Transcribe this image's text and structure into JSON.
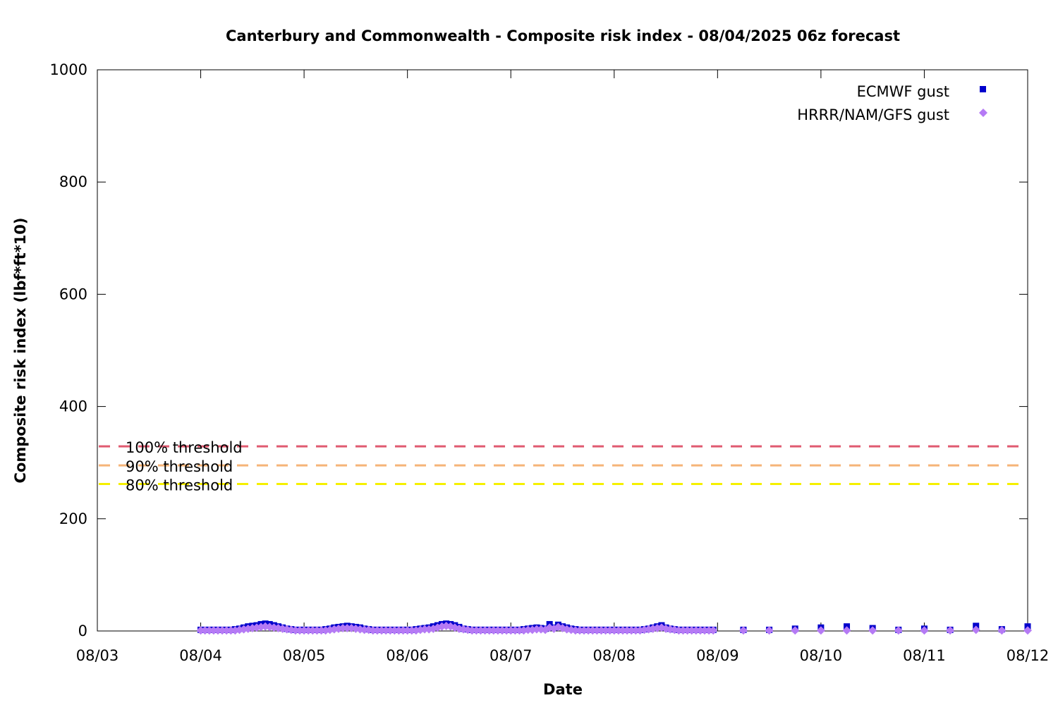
{
  "chart_data": {
    "type": "scatter",
    "title": "Canterbury and Commonwealth - Composite risk index - 08/04/2025 06z forecast",
    "xlabel": "Date",
    "ylabel": "Composite risk index (lbf*ft*10)",
    "ylim": [
      0,
      1000
    ],
    "xlim": [
      "08/03",
      "08/12"
    ],
    "x_ticks": [
      "08/03",
      "08/04",
      "08/05",
      "08/06",
      "08/07",
      "08/08",
      "08/09",
      "08/10",
      "08/11",
      "08/12"
    ],
    "y_ticks": [
      0,
      200,
      400,
      600,
      800,
      1000
    ],
    "grid": false,
    "legend_position": "top-right",
    "thresholds": [
      {
        "label": "100% threshold",
        "value": 329,
        "color": "#e05a70"
      },
      {
        "label": "90% threshold",
        "value": 295,
        "color": "#f5b478"
      },
      {
        "label": "80% threshold",
        "value": 262,
        "color": "#f5f000"
      }
    ],
    "series": [
      {
        "name": "ECMWF gust",
        "color": "#0000cc",
        "marker": "square",
        "x": [
          "08/04 00z",
          "08/04 01z",
          "08/04 02z",
          "08/04 03z",
          "08/04 04z",
          "08/04 05z",
          "08/04 06z",
          "08/04 07z",
          "08/04 08z",
          "08/04 09z",
          "08/04 10z",
          "08/04 11z",
          "08/04 12z",
          "08/04 13z",
          "08/04 14z",
          "08/04 15z",
          "08/04 16z",
          "08/04 17z",
          "08/04 18z",
          "08/04 19z",
          "08/04 20z",
          "08/04 21z",
          "08/04 22z",
          "08/04 23z",
          "08/05 00z",
          "08/05 01z",
          "08/05 02z",
          "08/05 03z",
          "08/05 04z",
          "08/05 05z",
          "08/05 06z",
          "08/05 07z",
          "08/05 08z",
          "08/05 09z",
          "08/05 10z",
          "08/05 11z",
          "08/05 12z",
          "08/05 13z",
          "08/05 14z",
          "08/05 15z",
          "08/05 16z",
          "08/05 17z",
          "08/05 18z",
          "08/05 19z",
          "08/05 20z",
          "08/05 21z",
          "08/05 22z",
          "08/05 23z",
          "08/06 00z",
          "08/06 01z",
          "08/06 02z",
          "08/06 03z",
          "08/06 04z",
          "08/06 05z",
          "08/06 06z",
          "08/06 07z",
          "08/06 08z",
          "08/06 09z",
          "08/06 10z",
          "08/06 11z",
          "08/06 12z",
          "08/06 13z",
          "08/06 14z",
          "08/06 15z",
          "08/06 16z",
          "08/06 17z",
          "08/06 18z",
          "08/06 19z",
          "08/06 20z",
          "08/06 21z",
          "08/06 22z",
          "08/06 23z",
          "08/07 00z",
          "08/07 01z",
          "08/07 02z",
          "08/07 03z",
          "08/07 04z",
          "08/07 05z",
          "08/07 06z",
          "08/07 07z",
          "08/07 08z",
          "08/07 09z",
          "08/07 10z",
          "08/07 11z",
          "08/07 12z",
          "08/07 13z",
          "08/07 14z",
          "08/07 15z",
          "08/07 16z",
          "08/07 17z",
          "08/07 18z",
          "08/07 19z",
          "08/07 20z",
          "08/07 21z",
          "08/07 22z",
          "08/07 23z",
          "08/08 00z",
          "08/08 01z",
          "08/08 02z",
          "08/08 03z",
          "08/08 04z",
          "08/08 05z",
          "08/08 06z",
          "08/08 07z",
          "08/08 08z",
          "08/08 09z",
          "08/08 10z",
          "08/08 11z",
          "08/08 12z",
          "08/08 13z",
          "08/08 14z",
          "08/08 15z",
          "08/08 16z",
          "08/08 17z",
          "08/08 18z",
          "08/08 19z",
          "08/08 20z",
          "08/08 21z",
          "08/08 22z",
          "08/08 23z",
          "08/09 06z",
          "08/09 12z",
          "08/09 18z",
          "08/10 00z",
          "08/10 06z",
          "08/10 12z",
          "08/10 18z",
          "08/11 00z",
          "08/11 06z",
          "08/11 12z",
          "08/11 18z",
          "08/12 00z"
        ],
        "values": [
          2,
          2,
          2,
          2,
          2,
          2,
          2,
          2,
          3,
          4,
          6,
          8,
          9,
          10,
          12,
          13,
          12,
          10,
          8,
          6,
          4,
          3,
          2,
          2,
          2,
          2,
          2,
          2,
          2,
          3,
          4,
          6,
          7,
          8,
          9,
          8,
          7,
          6,
          4,
          3,
          2,
          2,
          2,
          2,
          2,
          2,
          2,
          2,
          2,
          2,
          3,
          4,
          5,
          6,
          8,
          10,
          12,
          13,
          12,
          10,
          7,
          4,
          3,
          2,
          2,
          2,
          2,
          2,
          2,
          2,
          2,
          2,
          2,
          2,
          2,
          3,
          4,
          5,
          6,
          5,
          4,
          12,
          6,
          11,
          8,
          6,
          4,
          3,
          2,
          2,
          2,
          2,
          2,
          2,
          2,
          2,
          2,
          2,
          2,
          2,
          2,
          2,
          2,
          3,
          4,
          6,
          8,
          10,
          6,
          4,
          3,
          2,
          2,
          2,
          2,
          2,
          2,
          2,
          2,
          2,
          2,
          2,
          4,
          6,
          8,
          5,
          2,
          4,
          2,
          9,
          3,
          8
        ]
      },
      {
        "name": "HRRR/NAM/GFS gust",
        "color": "#b57af5",
        "marker": "diamond",
        "x": [
          "08/04 00z",
          "08/04 01z",
          "08/04 02z",
          "08/04 03z",
          "08/04 04z",
          "08/04 05z",
          "08/04 06z",
          "08/04 07z",
          "08/04 08z",
          "08/04 09z",
          "08/04 10z",
          "08/04 11z",
          "08/04 12z",
          "08/04 13z",
          "08/04 14z",
          "08/04 15z",
          "08/04 16z",
          "08/04 17z",
          "08/04 18z",
          "08/04 19z",
          "08/04 20z",
          "08/04 21z",
          "08/04 22z",
          "08/04 23z",
          "08/05 00z",
          "08/05 01z",
          "08/05 02z",
          "08/05 03z",
          "08/05 04z",
          "08/05 05z",
          "08/05 06z",
          "08/05 07z",
          "08/05 08z",
          "08/05 09z",
          "08/05 10z",
          "08/05 11z",
          "08/05 12z",
          "08/05 13z",
          "08/05 14z",
          "08/05 15z",
          "08/05 16z",
          "08/05 17z",
          "08/05 18z",
          "08/05 19z",
          "08/05 20z",
          "08/05 21z",
          "08/05 22z",
          "08/05 23z",
          "08/06 00z",
          "08/06 01z",
          "08/06 02z",
          "08/06 03z",
          "08/06 04z",
          "08/06 05z",
          "08/06 06z",
          "08/06 07z",
          "08/06 08z",
          "08/06 09z",
          "08/06 10z",
          "08/06 11z",
          "08/06 12z",
          "08/06 13z",
          "08/06 14z",
          "08/06 15z",
          "08/06 16z",
          "08/06 17z",
          "08/06 18z",
          "08/06 19z",
          "08/06 20z",
          "08/06 21z",
          "08/06 22z",
          "08/06 23z",
          "08/07 00z",
          "08/07 01z",
          "08/07 02z",
          "08/07 03z",
          "08/07 04z",
          "08/07 05z",
          "08/07 06z",
          "08/07 07z",
          "08/07 08z",
          "08/07 09z",
          "08/07 10z",
          "08/07 11z",
          "08/07 12z",
          "08/07 13z",
          "08/07 14z",
          "08/07 15z",
          "08/07 16z",
          "08/07 17z",
          "08/07 18z",
          "08/07 19z",
          "08/07 20z",
          "08/07 21z",
          "08/07 22z",
          "08/07 23z",
          "08/08 00z",
          "08/08 01z",
          "08/08 02z",
          "08/08 03z",
          "08/08 04z",
          "08/08 05z",
          "08/08 06z",
          "08/08 07z",
          "08/08 08z",
          "08/08 09z",
          "08/08 10z",
          "08/08 11z",
          "08/08 12z",
          "08/08 13z",
          "08/08 14z",
          "08/08 15z",
          "08/08 16z",
          "08/08 17z",
          "08/08 18z",
          "08/08 19z",
          "08/08 20z",
          "08/08 21z",
          "08/08 22z",
          "08/08 23z",
          "08/09 06z",
          "08/09 12z",
          "08/09 18z",
          "08/10 00z",
          "08/10 06z",
          "08/10 12z",
          "08/10 18z",
          "08/11 00z",
          "08/11 06z",
          "08/11 12z",
          "08/11 18z",
          "08/12 00z"
        ],
        "values": [
          1,
          1,
          1,
          1,
          1,
          1,
          1,
          1,
          1,
          2,
          3,
          4,
          5,
          6,
          7,
          8,
          7,
          6,
          5,
          4,
          3,
          2,
          1,
          1,
          1,
          1,
          1,
          1,
          1,
          1,
          2,
          3,
          4,
          5,
          5,
          5,
          4,
          3,
          2,
          2,
          1,
          1,
          1,
          1,
          1,
          1,
          1,
          1,
          1,
          1,
          1,
          2,
          3,
          3,
          4,
          6,
          8,
          9,
          8,
          6,
          4,
          3,
          2,
          1,
          1,
          1,
          1,
          1,
          1,
          1,
          1,
          1,
          1,
          1,
          1,
          1,
          2,
          2,
          3,
          3,
          2,
          6,
          4,
          7,
          5,
          3,
          2,
          1,
          1,
          1,
          1,
          1,
          1,
          1,
          1,
          1,
          1,
          1,
          1,
          1,
          1,
          1,
          1,
          2,
          3,
          4,
          5,
          6,
          4,
          3,
          2,
          1,
          1,
          1,
          1,
          1,
          1,
          1,
          1,
          1,
          1,
          1,
          1,
          1,
          1,
          1,
          1,
          1,
          1,
          2,
          1,
          1
        ]
      }
    ]
  }
}
